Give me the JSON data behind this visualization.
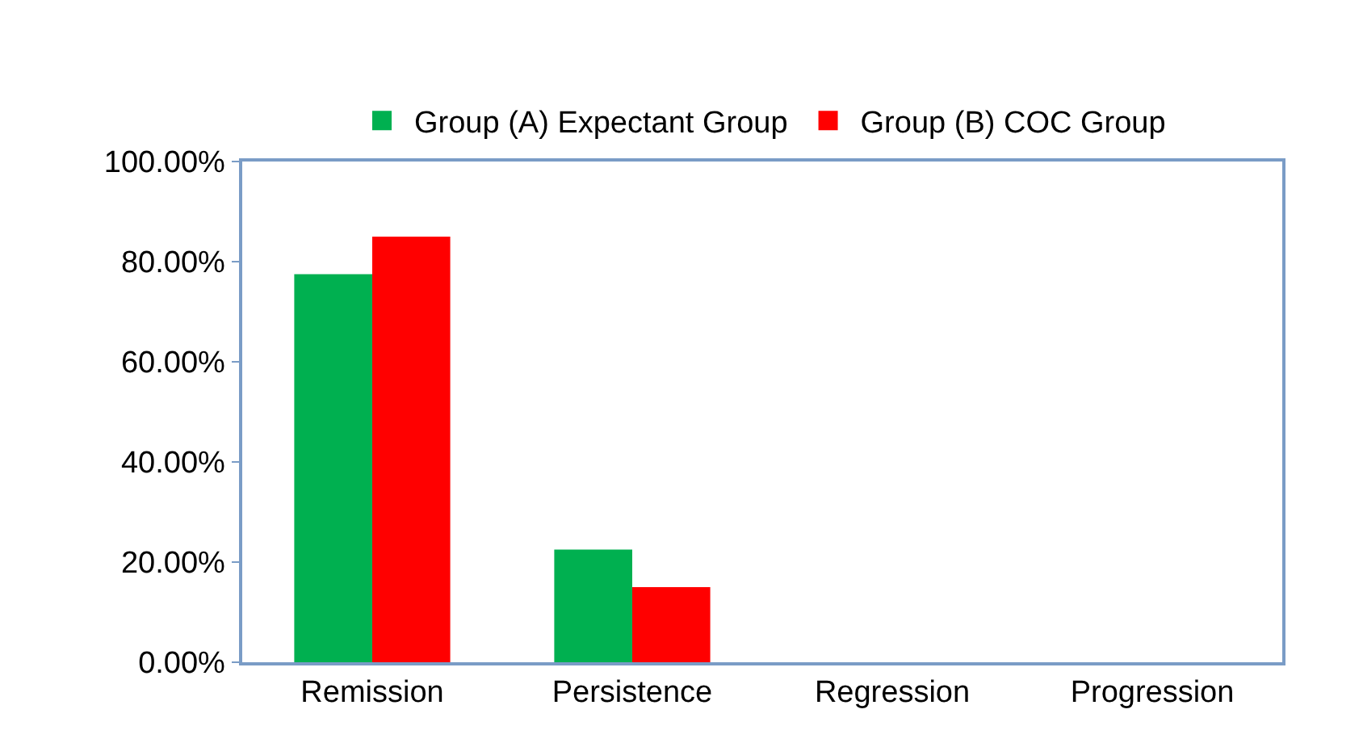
{
  "chart_data": {
    "type": "bar",
    "categories": [
      "Remission",
      "Persistence",
      "Regression",
      "Progression"
    ],
    "series": [
      {
        "name": "Group (A) Expectant Group",
        "color": "#00b050",
        "values": [
          77.5,
          22.5,
          0,
          0
        ]
      },
      {
        "name": "Group (B) COC Group",
        "color": "#ff0000",
        "values": [
          85,
          15,
          0,
          0
        ]
      }
    ],
    "ylim": [
      0,
      100
    ],
    "yticks": [
      {
        "value": 0,
        "label": "0.00%"
      },
      {
        "value": 20,
        "label": "20.00%"
      },
      {
        "value": 40,
        "label": "40.00%"
      },
      {
        "value": 60,
        "label": "60.00%"
      },
      {
        "value": 80,
        "label": "80.00%"
      },
      {
        "value": 100,
        "label": "100.00%"
      }
    ],
    "grid": false,
    "legend": "top"
  }
}
